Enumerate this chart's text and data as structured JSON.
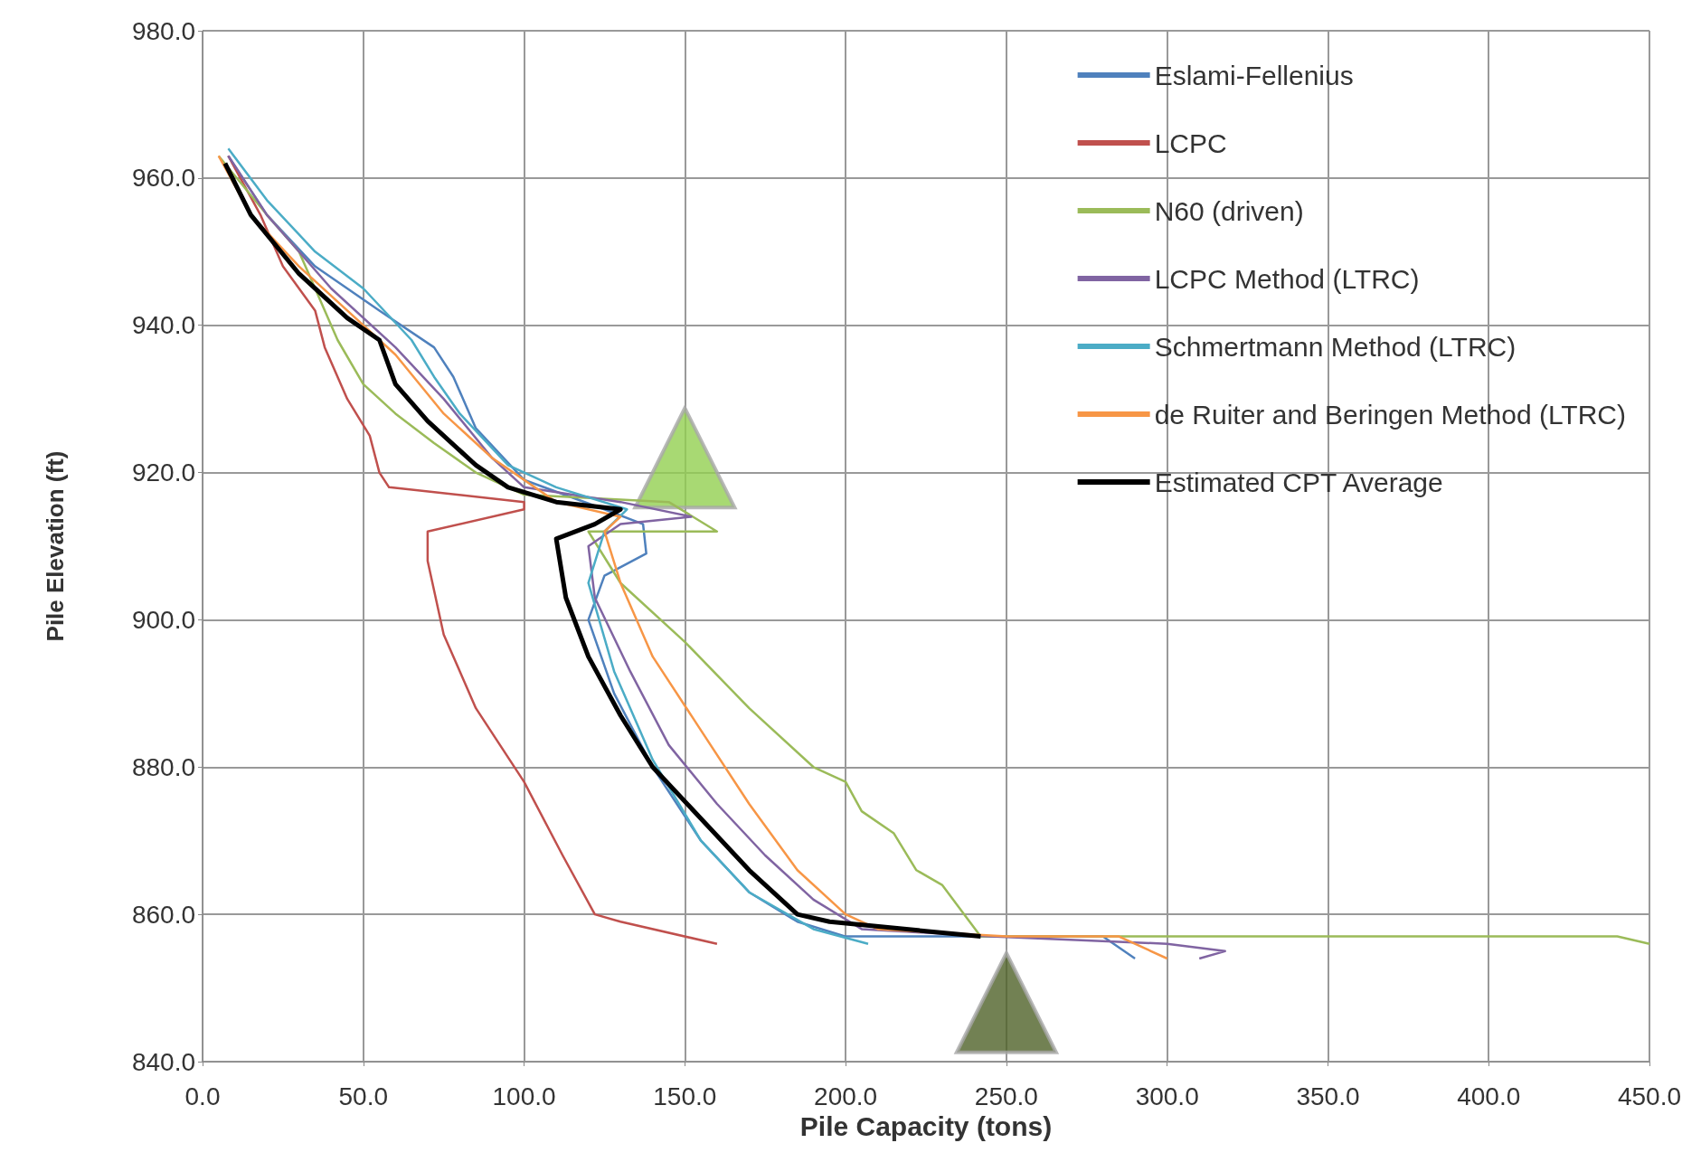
{
  "chart_data": {
    "type": "line",
    "xlabel": "Pile Capacity (tons)",
    "ylabel": "Pile Elevation (ft)",
    "xlim": [
      0,
      450
    ],
    "xticks": [
      {
        "value": 0,
        "label": "0.0"
      },
      {
        "value": 50,
        "label": "50.0"
      },
      {
        "value": 100,
        "label": "100.0"
      },
      {
        "value": 150,
        "label": "150.0"
      },
      {
        "value": 200,
        "label": "200.0"
      },
      {
        "value": 250,
        "label": "250.0"
      },
      {
        "value": 300,
        "label": "300.0"
      },
      {
        "value": 350,
        "label": "350.0"
      },
      {
        "value": 400,
        "label": "400.0"
      },
      {
        "value": 450,
        "label": "450.0"
      }
    ],
    "ylim": [
      840,
      980
    ],
    "yticks": [
      {
        "value": 840,
        "label": "840.0"
      },
      {
        "value": 860,
        "label": "860.0"
      },
      {
        "value": 880,
        "label": "880.0"
      },
      {
        "value": 900,
        "label": "900.0"
      },
      {
        "value": 920,
        "label": "920.0"
      },
      {
        "value": 940,
        "label": "940.0"
      },
      {
        "value": 960,
        "label": "960.0"
      },
      {
        "value": 980,
        "label": "980.0"
      }
    ],
    "grid": true,
    "legend": "top right",
    "marker": "none",
    "series": [
      {
        "name": "Eslami-Fellenius",
        "color": "#4f81bd",
        "x": [
          8,
          20,
          35,
          55,
          72,
          78,
          85,
          100,
          125,
          137,
          138,
          125,
          120,
          128,
          140,
          155,
          170,
          185,
          200,
          245,
          280,
          290
        ],
        "values": [
          963,
          955,
          948,
          942,
          937,
          933,
          926,
          919,
          915,
          913,
          909,
          906,
          900,
          890,
          880,
          870,
          863,
          859,
          857,
          857,
          857,
          854
        ]
      },
      {
        "name": "LCPC",
        "color": "#c0504d",
        "x": [
          8,
          18,
          25,
          35,
          38,
          45,
          52,
          55,
          58,
          100,
          100,
          70,
          70,
          75,
          85,
          100,
          112,
          122,
          130,
          160
        ],
        "values": [
          963,
          955,
          948,
          942,
          937,
          930,
          925,
          920,
          918,
          916,
          915,
          912,
          908,
          898,
          888,
          878,
          868,
          860,
          859,
          856
        ]
      },
      {
        "name": "N60 (driven)",
        "color": "#9bbb59",
        "x": [
          5,
          20,
          30,
          35,
          42,
          50,
          60,
          72,
          85,
          100,
          145,
          160,
          120,
          130,
          150,
          170,
          190,
          200,
          205,
          215,
          222,
          230,
          242,
          300,
          440,
          450
        ],
        "values": [
          963,
          955,
          950,
          945,
          938,
          932,
          928,
          924,
          920,
          917,
          916,
          912,
          912,
          905,
          897,
          888,
          880,
          878,
          874,
          871,
          866,
          864,
          857,
          857,
          857,
          856
        ]
      },
      {
        "name": "LCPC Method (LTRC)",
        "color": "#8064a2",
        "x": [
          8,
          20,
          40,
          60,
          75,
          90,
          100,
          130,
          152,
          130,
          120,
          122,
          133,
          145,
          160,
          175,
          190,
          205,
          245,
          300,
          318,
          310
        ],
        "values": [
          963,
          955,
          945,
          937,
          930,
          922,
          918,
          916,
          914,
          913,
          910,
          903,
          893,
          883,
          875,
          868,
          862,
          858,
          857,
          856,
          855,
          854
        ]
      },
      {
        "name": "Schmertmann Method (LTRC)",
        "color": "#4bacc6",
        "x": [
          8,
          20,
          35,
          50,
          65,
          72,
          80,
          95,
          110,
          132,
          125,
          120,
          128,
          140,
          155,
          170,
          190,
          207
        ],
        "values": [
          964,
          957,
          950,
          945,
          938,
          933,
          928,
          921,
          918,
          915,
          912,
          905,
          893,
          881,
          870,
          863,
          858,
          856
        ]
      },
      {
        "name": "de Ruiter and Beringen Method (LTRC)",
        "color": "#f79646",
        "x": [
          5,
          15,
          30,
          45,
          60,
          75,
          90,
          110,
          130,
          125,
          130,
          140,
          155,
          170,
          185,
          200,
          210,
          250,
          285,
          300
        ],
        "values": [
          963,
          955,
          948,
          942,
          936,
          928,
          922,
          916,
          914,
          912,
          905,
          895,
          885,
          875,
          866,
          860,
          858,
          857,
          857,
          854
        ]
      },
      {
        "name": "Estimated CPT Average",
        "color": "#000000",
        "x": [
          7,
          15,
          30,
          45,
          55,
          60,
          70,
          85,
          95,
          110,
          130,
          122,
          110,
          113,
          120,
          130,
          140,
          155,
          170,
          185,
          195,
          242
        ],
        "values": [
          962,
          955,
          947,
          941,
          938,
          932,
          927,
          921,
          918,
          916,
          915,
          913,
          911,
          903,
          895,
          887,
          880,
          873,
          866,
          860,
          859,
          857
        ]
      },
      {
        "type": "scatter",
        "marker": "triangle",
        "color": "#92d050",
        "x": [
          150
        ],
        "values": [
          922
        ]
      },
      {
        "type": "scatter",
        "marker": "triangle",
        "color": "#4f6228",
        "x": [
          250
        ],
        "values": [
          848
        ]
      }
    ]
  }
}
